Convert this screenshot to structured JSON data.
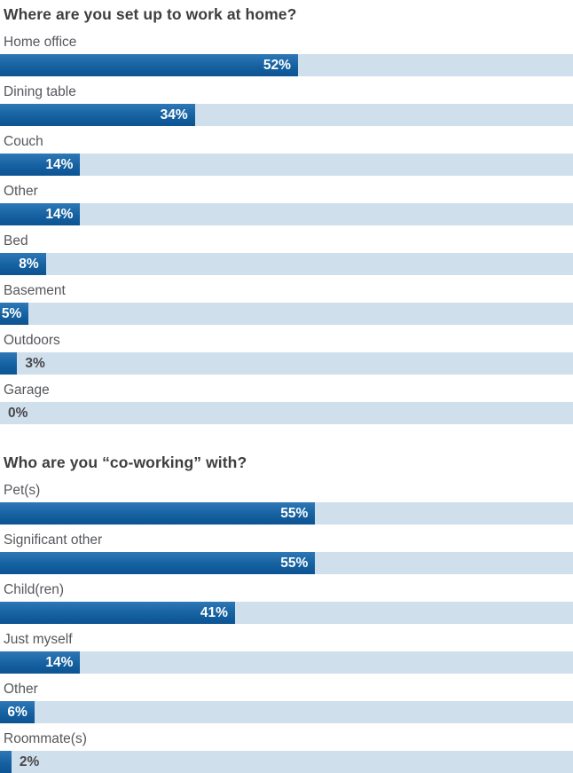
{
  "colors": {
    "title_text": "#3e3e40",
    "label_text": "#55575c",
    "bar_fill_top": "#2e78b8",
    "bar_fill_bottom": "#0c5394",
    "bar_track": "#cfdfeb",
    "value_text_inside": "#ffffff",
    "value_text_outside": "#48484a"
  },
  "chart_data": [
    {
      "type": "bar",
      "orientation": "horizontal",
      "title": "Where are you set up to work at home?",
      "xlabel": "",
      "ylabel": "",
      "unit": "%",
      "xlim": [
        0,
        100
      ],
      "grid": false,
      "legend": false,
      "categories": [
        "Home office",
        "Dining table",
        "Couch",
        "Other",
        "Bed",
        "Basement",
        "Outdoors",
        "Garage"
      ],
      "values": [
        52,
        34,
        14,
        14,
        8,
        5,
        3,
        0
      ],
      "value_labels": [
        "52%",
        "34%",
        "14%",
        "14%",
        "8%",
        "5%",
        "3%",
        "0%"
      ]
    },
    {
      "type": "bar",
      "orientation": "horizontal",
      "title": "Who are you “co-working” with?",
      "xlabel": "",
      "ylabel": "",
      "unit": "%",
      "xlim": [
        0,
        100
      ],
      "grid": false,
      "legend": false,
      "categories": [
        "Pet(s)",
        "Significant other",
        "Child(ren)",
        "Just myself",
        "Other",
        "Roommate(s)"
      ],
      "values": [
        55,
        55,
        41,
        14,
        6,
        2
      ],
      "value_labels": [
        "55%",
        "55%",
        "41%",
        "14%",
        "6%",
        "2%"
      ]
    }
  ]
}
